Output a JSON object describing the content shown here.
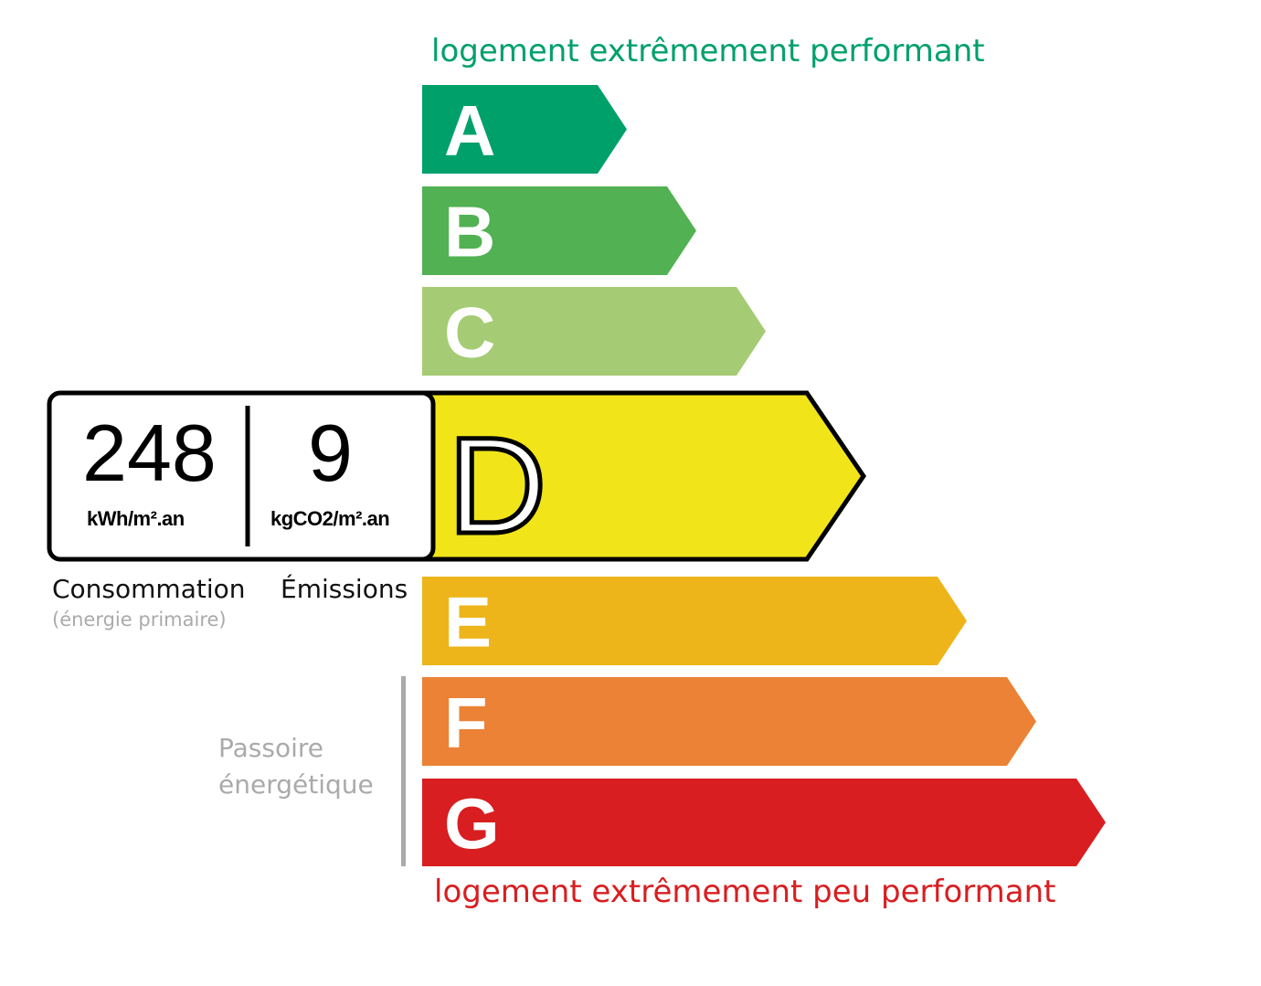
{
  "header": {
    "best_caption": "logement extrêmement performant"
  },
  "footer": {
    "worst_caption": "logement extrêmement peu performant"
  },
  "classes": [
    {
      "letter": "A",
      "color": "#00a06b"
    },
    {
      "letter": "B",
      "color": "#52b153"
    },
    {
      "letter": "C",
      "color": "#a5cc74"
    },
    {
      "letter": "D",
      "color": "#f1e51a"
    },
    {
      "letter": "E",
      "color": "#eeb51a"
    },
    {
      "letter": "F",
      "color": "#eb8235"
    },
    {
      "letter": "G",
      "color": "#d81e20"
    }
  ],
  "current_class": "D",
  "consumption": {
    "value": "248",
    "unit": "kWh/m².an",
    "label": "Consommation",
    "sublabel": "(énergie primaire)"
  },
  "emissions": {
    "value": "9",
    "unit": "kgCO2/m².an",
    "label": "Émissions"
  },
  "passoire": {
    "line1": "Passoire",
    "line2": "énergétique"
  }
}
